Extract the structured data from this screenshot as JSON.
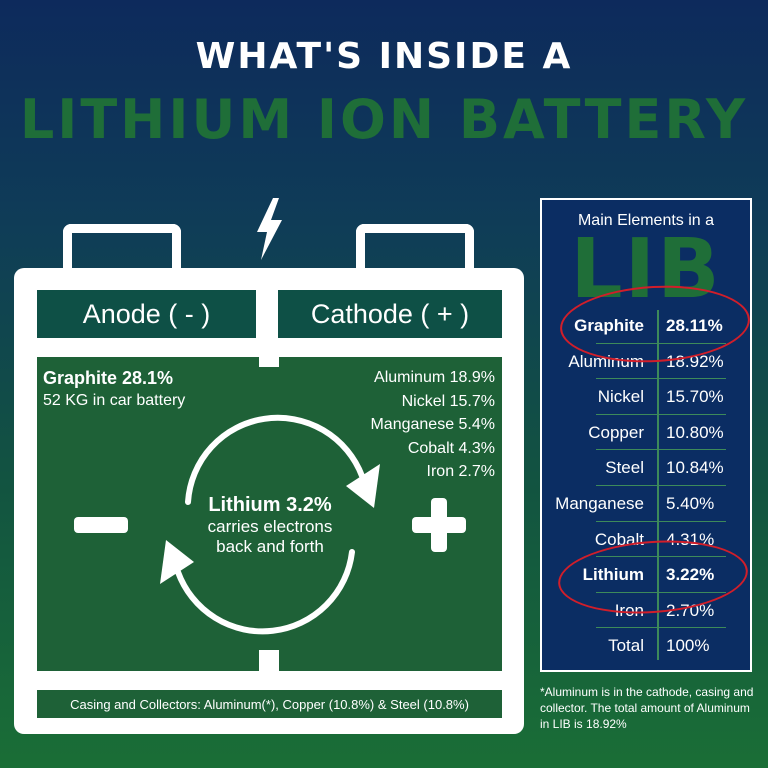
{
  "header": {
    "line1": "WHAT'S INSIDE A",
    "line2": "LITHIUM ION BATTERY"
  },
  "battery": {
    "anode_label": "Anode ( - )",
    "cathode_label": "Cathode ( + )",
    "anode": {
      "title": "Graphite 28.1%",
      "subtitle": "52 KG in car battery"
    },
    "cathode_elements": [
      "Aluminum 18.9%",
      "Nickel 15.7%",
      "Manganese 5.4%",
      "Cobalt 4.3%",
      "Iron 2.7%"
    ],
    "center": {
      "title": "Lithium 3.2%",
      "line1": "carries electrons",
      "line2": "back and forth"
    },
    "casing": "Casing and Collectors: Aluminum(*), Copper (10.8%) & Steel (10.8%)"
  },
  "lib_table": {
    "title": "Main Elements in a",
    "big_title": "LIB",
    "rows": [
      {
        "element": "Graphite",
        "value": "28.11%",
        "highlighted": true
      },
      {
        "element": "Aluminum",
        "value": "18.92%",
        "highlighted": false
      },
      {
        "element": "Nickel",
        "value": "15.70%",
        "highlighted": false
      },
      {
        "element": "Copper",
        "value": "10.80%",
        "highlighted": false
      },
      {
        "element": "Steel",
        "value": "10.84%",
        "highlighted": false
      },
      {
        "element": "Manganese",
        "value": "5.40%",
        "highlighted": false
      },
      {
        "element": "Cobalt",
        "value": "4.31%",
        "highlighted": false
      },
      {
        "element": "Lithium",
        "value": "3.22%",
        "highlighted": true
      },
      {
        "element": "Iron",
        "value": "2.70%",
        "highlighted": false
      },
      {
        "element": "Total",
        "value": "100%",
        "highlighted": false
      }
    ]
  },
  "footnote": "*Aluminum is in the cathode, casing and collector. The total amount of Aluminum in LIB is 18.92%",
  "colors": {
    "title_green": "#1f6e38",
    "panel_green": "#1e6137",
    "label_teal": "#0e5046",
    "table_navy": "#0b2d63",
    "highlight_red": "#d11e2a"
  },
  "icons": [
    "lightning-bolt-icon",
    "minus-sign-icon",
    "plus-sign-icon",
    "cycle-arrows-icon"
  ]
}
